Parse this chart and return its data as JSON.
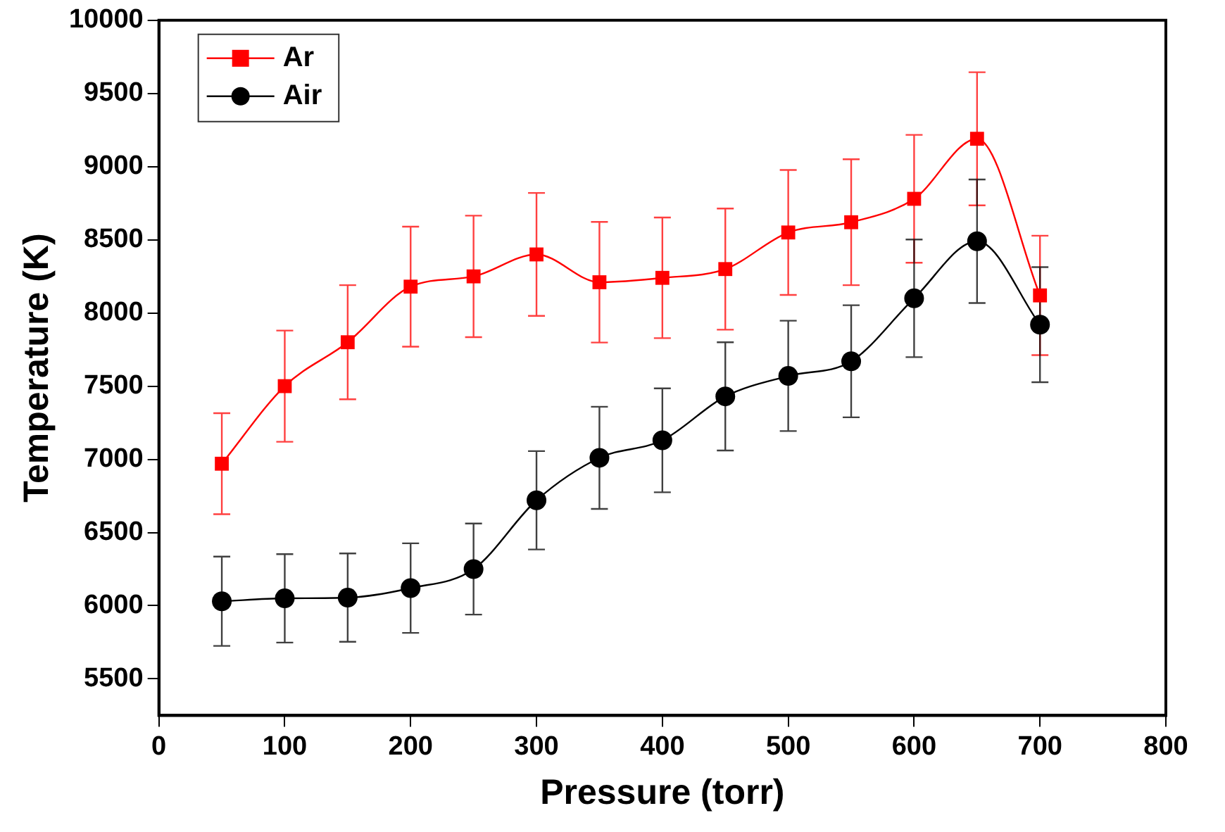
{
  "chart_data": {
    "type": "line",
    "xlabel": "Pressure (torr)",
    "ylabel": "Temperature (K)",
    "x": [
      50,
      100,
      150,
      200,
      250,
      300,
      350,
      400,
      450,
      500,
      550,
      600,
      650,
      700
    ],
    "xlim": [
      0,
      800
    ],
    "xticks": [
      0,
      100,
      200,
      300,
      400,
      500,
      600,
      700,
      800
    ],
    "ylim": [
      5250,
      10000
    ],
    "yticks": [
      5500,
      6000,
      6500,
      7000,
      7500,
      8000,
      8500,
      9000,
      9500,
      10000
    ],
    "grid": false,
    "legend": "top left",
    "line_style": "solid",
    "series": [
      {
        "name": "Ar",
        "color": "#ff0000",
        "marker": "square",
        "values": [
          6970,
          7500,
          7800,
          8180,
          8250,
          8400,
          8210,
          8240,
          8300,
          8550,
          8620,
          8780,
          9190,
          8120
        ],
        "errors": [
          345,
          380,
          390,
          410,
          415,
          420,
          412,
          412,
          414,
          427,
          430,
          437,
          455,
          408
        ]
      },
      {
        "name": "Air",
        "color": "#000000",
        "marker": "circle",
        "values": [
          6030,
          6050,
          6055,
          6120,
          6250,
          6720,
          7010,
          7130,
          7430,
          7570,
          7670,
          8100,
          8490,
          7920
        ],
        "errors": [
          305,
          302,
          302,
          306,
          311,
          336,
          349,
          355,
          370,
          377,
          383,
          402,
          422,
          393
        ]
      }
    ]
  }
}
